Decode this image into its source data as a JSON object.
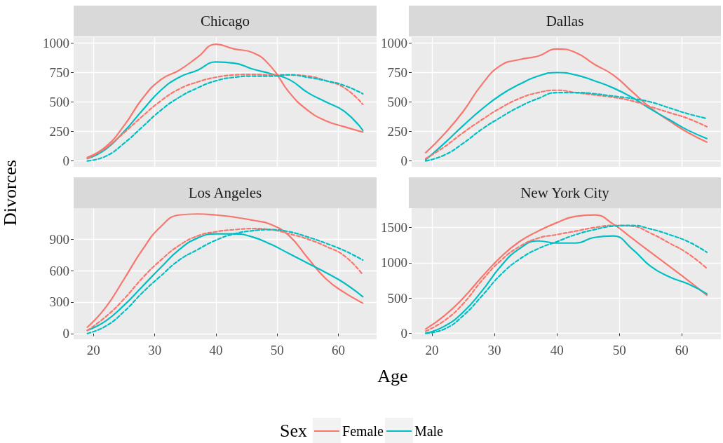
{
  "chart_data": [
    {
      "type": "line",
      "title": "Chicago",
      "ylabel": "Divorces",
      "legend": "bottom",
      "legend_title": "Sex",
      "x": [
        19,
        22,
        25,
        28,
        31,
        34,
        37,
        40,
        43,
        46,
        49,
        52,
        55,
        58,
        61,
        64
      ],
      "xlim": [
        16.75,
        66.25
      ],
      "xticks": [
        20,
        30,
        40,
        50,
        60
      ],
      "ylim": [
        -50,
        1050
      ],
      "yticks": [
        0,
        250,
        500,
        750,
        1000
      ],
      "grid": true,
      "tick_labels": "y",
      "series": [
        {
          "name": "Female",
          "color": "#f8766d",
          "line_style": "solid",
          "values": [
            30,
            120,
            300,
            530,
            690,
            770,
            880,
            990,
            950,
            920,
            800,
            580,
            430,
            340,
            290,
            245
          ]
        },
        {
          "name": "Male",
          "color": "#00bfc4",
          "line_style": "solid",
          "values": [
            20,
            100,
            250,
            430,
            600,
            710,
            770,
            840,
            830,
            780,
            740,
            690,
            580,
            500,
            420,
            260
          ]
        },
        {
          "color": "#f8766d",
          "line_style": "dashed",
          "values": [
            20,
            110,
            240,
            380,
            510,
            610,
            670,
            710,
            730,
            735,
            730,
            730,
            720,
            680,
            620,
            480
          ]
        },
        {
          "color": "#00bfc4",
          "line_style": "dashed",
          "values": [
            0,
            40,
            150,
            290,
            430,
            540,
            620,
            680,
            710,
            720,
            720,
            730,
            710,
            680,
            640,
            570
          ]
        }
      ]
    },
    {
      "type": "line",
      "title": "Dallas",
      "x": [
        19,
        22,
        25,
        28,
        31,
        34,
        37,
        40,
        43,
        46,
        49,
        52,
        55,
        58,
        61,
        64
      ],
      "xlim": [
        16.75,
        66.25
      ],
      "xticks": [
        20,
        30,
        40,
        50,
        60
      ],
      "ylim": [
        -50,
        1050
      ],
      "yticks": [
        0,
        250,
        500,
        750,
        1000
      ],
      "grid": true,
      "tick_labels": "y",
      "series": [
        {
          "color": "#f8766d",
          "line_style": "solid",
          "values": [
            70,
            230,
            420,
            650,
            810,
            860,
            890,
            950,
            920,
            820,
            730,
            590,
            450,
            340,
            240,
            160
          ]
        },
        {
          "color": "#00bfc4",
          "line_style": "solid",
          "values": [
            10,
            150,
            300,
            440,
            560,
            650,
            720,
            750,
            730,
            680,
            620,
            540,
            440,
            350,
            260,
            190
          ]
        },
        {
          "color": "#f8766d",
          "line_style": "dashed",
          "values": [
            20,
            120,
            240,
            350,
            450,
            530,
            580,
            600,
            580,
            560,
            540,
            510,
            460,
            410,
            360,
            290
          ]
        },
        {
          "color": "#00bfc4",
          "line_style": "dashed",
          "values": [
            0,
            50,
            150,
            270,
            370,
            460,
            530,
            580,
            580,
            570,
            550,
            530,
            500,
            450,
            400,
            360
          ]
        }
      ]
    },
    {
      "type": "line",
      "title": "Los Angeles",
      "xlabel": "Age",
      "x": [
        19,
        22,
        25,
        28,
        31,
        34,
        37,
        40,
        43,
        46,
        49,
        52,
        55,
        58,
        61,
        64
      ],
      "xlim": [
        16.75,
        66.25
      ],
      "xticks": [
        20,
        30,
        40,
        50,
        60
      ],
      "ylim": [
        -55,
        1195
      ],
      "yticks": [
        0,
        300,
        600,
        900
      ],
      "grid": true,
      "series": [
        {
          "color": "#f8766d",
          "line_style": "solid",
          "values": [
            60,
            250,
            520,
            800,
            1020,
            1130,
            1140,
            1130,
            1110,
            1080,
            1040,
            930,
            720,
            520,
            390,
            290
          ]
        },
        {
          "color": "#00bfc4",
          "line_style": "solid",
          "values": [
            30,
            120,
            270,
            450,
            630,
            800,
            910,
            950,
            950,
            920,
            850,
            760,
            670,
            580,
            480,
            350
          ]
        },
        {
          "color": "#f8766d",
          "line_style": "dashed",
          "values": [
            30,
            160,
            330,
            530,
            700,
            840,
            930,
            970,
            990,
            1000,
            990,
            950,
            900,
            830,
            740,
            560
          ]
        },
        {
          "color": "#00bfc4",
          "line_style": "dashed",
          "values": [
            0,
            70,
            210,
            390,
            550,
            700,
            800,
            890,
            950,
            980,
            990,
            970,
            920,
            860,
            790,
            700
          ]
        }
      ]
    },
    {
      "type": "line",
      "title": "New York City",
      "x": [
        19,
        22,
        25,
        28,
        31,
        34,
        37,
        40,
        43,
        46,
        49,
        52,
        55,
        58,
        61,
        64
      ],
      "xlim": [
        16.75,
        66.25
      ],
      "xticks": [
        20,
        30,
        40,
        50,
        60
      ],
      "ylim": [
        -85,
        1775
      ],
      "yticks": [
        0,
        500,
        1000,
        1500
      ],
      "grid": true,
      "series": [
        {
          "color": "#f8766d",
          "line_style": "solid",
          "values": [
            60,
            250,
            500,
            800,
            1080,
            1300,
            1450,
            1570,
            1660,
            1680,
            1550,
            1350,
            1150,
            950,
            750,
            540
          ]
        },
        {
          "color": "#00bfc4",
          "line_style": "solid",
          "values": [
            0,
            100,
            300,
            600,
            950,
            1200,
            1310,
            1280,
            1280,
            1360,
            1380,
            1200,
            950,
            800,
            700,
            560
          ]
        },
        {
          "color": "#f8766d",
          "line_style": "dashed",
          "values": [
            30,
            180,
            420,
            750,
            1030,
            1230,
            1350,
            1400,
            1450,
            1500,
            1530,
            1520,
            1420,
            1280,
            1130,
            920
          ]
        },
        {
          "color": "#00bfc4",
          "line_style": "dashed",
          "values": [
            0,
            60,
            250,
            530,
            830,
            1050,
            1200,
            1300,
            1400,
            1470,
            1520,
            1530,
            1480,
            1400,
            1300,
            1150
          ]
        }
      ]
    }
  ]
}
